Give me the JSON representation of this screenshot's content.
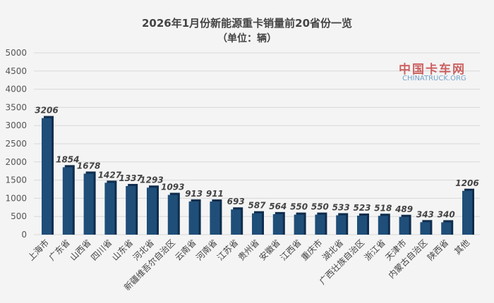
{
  "chart_data": {
    "type": "bar",
    "title": "2026年1月份新能源重卡销量前20省份一览",
    "subtitle": "（单位：辆）",
    "categories": [
      "上海市",
      "广东省",
      "山西省",
      "四川省",
      "山东省",
      "河北省",
      "新疆维吾尔自治区",
      "云南省",
      "河南省",
      "江苏省",
      "贵州省",
      "安徽省",
      "江西省",
      "重庆市",
      "湖北省",
      "广西壮族自治区",
      "浙江省",
      "天津市",
      "内蒙古自治区",
      "陕西省",
      "其他"
    ],
    "values": [
      3206,
      1854,
      1678,
      1427,
      1337,
      1293,
      1093,
      913,
      911,
      693,
      587,
      564,
      550,
      550,
      533,
      523,
      518,
      489,
      343,
      340,
      1206
    ],
    "ylim": [
      0,
      5000
    ],
    "yticks": [
      0,
      500,
      1000,
      1500,
      2000,
      2500,
      3000,
      3500,
      4000,
      4500,
      5000
    ],
    "grid": true,
    "bar_color": "#1f4e79",
    "xlabel": "",
    "ylabel": ""
  },
  "watermark": {
    "name": "中国卡车网",
    "url": "CHINATRUCK.ORG"
  }
}
